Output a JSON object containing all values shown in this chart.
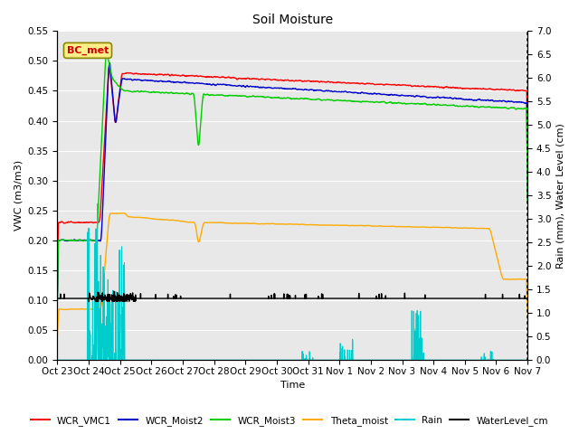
{
  "title": "Soil Moisture",
  "xlabel": "Time",
  "ylabel_left": "VWC (m3/m3)",
  "ylabel_right": "Rain (mm), Water Level (cm)",
  "ylim_left": [
    0.0,
    0.55
  ],
  "ylim_right": [
    0.0,
    7.0
  ],
  "yticks_left": [
    0.0,
    0.05,
    0.1,
    0.15,
    0.2,
    0.25,
    0.3,
    0.35,
    0.4,
    0.45,
    0.5,
    0.55
  ],
  "yticks_right": [
    0.0,
    0.5,
    1.0,
    1.5,
    2.0,
    2.5,
    3.0,
    3.5,
    4.0,
    4.5,
    5.0,
    5.5,
    6.0,
    6.5,
    7.0
  ],
  "bg_color": "#e8e8e8",
  "box_label": "BC_met",
  "legend_entries": [
    "WCR_VMC1",
    "WCR_Moist2",
    "WCR_Moist3",
    "Theta_moist",
    "Rain",
    "WaterLevel_cm"
  ],
  "legend_colors": [
    "#ff0000",
    "#0000cc",
    "#00cc00",
    "#ffaa00",
    "#00cccc",
    "#000000"
  ],
  "xtick_labels": [
    "Oct 23",
    "Oct 24",
    "Oct 25",
    "Oct 26",
    "Oct 27",
    "Oct 28",
    "Oct 29",
    "Oct 30",
    "Oct 31",
    "Nov 1",
    "Nov 2",
    "Nov 3",
    "Nov 4",
    "Nov 5",
    "Nov 6",
    "Nov 7"
  ],
  "n_points": 2000
}
